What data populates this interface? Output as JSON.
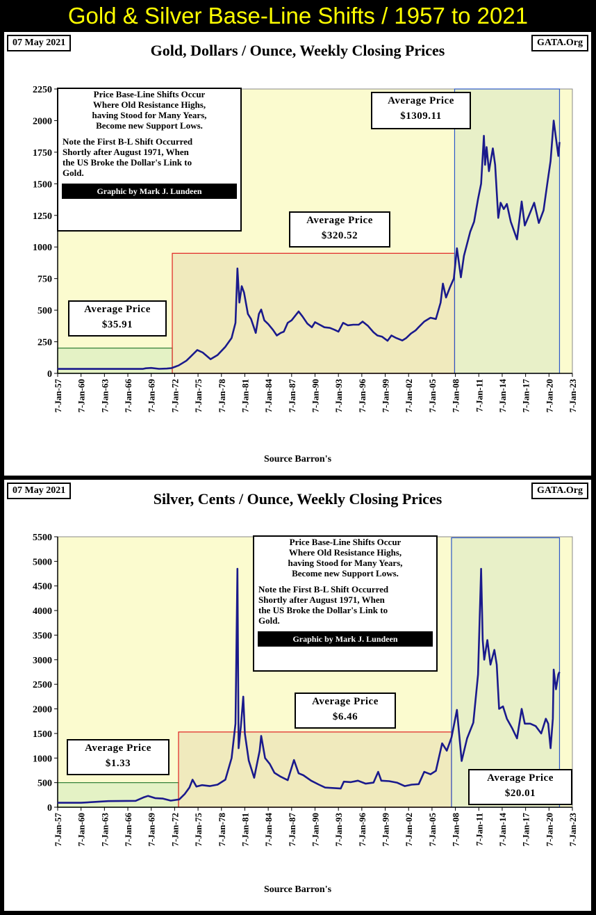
{
  "banner": {
    "title": "Gold & Silver Base-Line Shifts / 1957 to 2021"
  },
  "x_tick_labels": [
    "7-Jan-57",
    "7-Jan-60",
    "7-Jan-63",
    "7-Jan-66",
    "7-Jan-69",
    "7-Jan-72",
    "7-Jan-75",
    "7-Jan-78",
    "7-Jan-81",
    "7-Jan-84",
    "7-Jan-87",
    "7-Jan-90",
    "7-Jan-93",
    "7-Jan-96",
    "7-Jan-99",
    "7-Jan-02",
    "7-Jan-05",
    "7-Jan-08",
    "7-Jan-11",
    "7-Jan-14",
    "7-Jan-17",
    "7-Jan-20",
    "7-Jan-23"
  ],
  "gold": {
    "date_label": "07 May 2021",
    "gata_label": "GATA.Org",
    "title": "Gold, Dollars / Ounce, Weekly Closing Prices",
    "source": "Source Barron's",
    "note": {
      "para1": "Price Base-Line Shifts Occur\nWhere Old Resistance Highs,\nhaving Stood for Many Years,\nBecome new Support Lows.",
      "para2": "Note the First B-L Shift Occurred\nShortly after August 1971, When\nthe US Broke the Dollar's Link to\nGold.",
      "credit": "Graphic by Mark J. Lundeen"
    },
    "avg1": {
      "label": "Average Price",
      "value": "$35.91"
    },
    "avg2": {
      "label": "Average Price",
      "value": "$320.52"
    },
    "avg3": {
      "label": "Average Price",
      "value": "$1309.11"
    }
  },
  "silver": {
    "date_label": "07 May 2021",
    "gata_label": "GATA.Org",
    "title": "Silver, Cents / Ounce, Weekly Closing Prices",
    "source": "Source Barron's",
    "note": {
      "para1": "Price Base-Line Shifts Occur\nWhere Old Resistance Highs,\nhaving Stood for Many Years,\nBecome new Support Lows.",
      "para2": "Note the First B-L Shift Occurred\nShortly after August 1971, When\nthe US Broke the Dollar's Link to\nGold.",
      "credit": "Graphic by Mark J. Lundeen"
    },
    "avg1": {
      "label": "Average Price",
      "value": "$1.33"
    },
    "avg2": {
      "label": "Average Price",
      "value": "$6.46"
    },
    "avg3": {
      "label": "Average Price",
      "value": "$20.01"
    }
  },
  "colors": {
    "banner_text": "#ffff00",
    "plot_bg": "#fbfbcf",
    "line": "#1a1a8c",
    "era1_border": "#2e7d32",
    "era1_fill": "#d7ecc0",
    "era2_border": "#e02020",
    "era2_fill": "#e9e0b4",
    "era3_border": "#2a56c8",
    "era3_fill": "#dde9c4"
  },
  "chart_data": [
    {
      "type": "line",
      "title": "Gold, Dollars / Ounce, Weekly Closing Prices",
      "xlabel": "Source Barron's",
      "ylabel": "",
      "xlim": [
        1957.0,
        2023.0
      ],
      "ylim": [
        0,
        2250
      ],
      "yticks": [
        0,
        250,
        500,
        750,
        1000,
        1250,
        1500,
        1750,
        2000,
        2250
      ],
      "grid": false,
      "eras": [
        {
          "x": [
            1957.0,
            1971.7
          ],
          "y": [
            0,
            200
          ]
        },
        {
          "x": [
            1971.7,
            2007.9
          ],
          "y": [
            0,
            950
          ]
        },
        {
          "x": [
            2007.9,
            2021.35
          ],
          "y": [
            0,
            2250
          ]
        }
      ],
      "series": [
        {
          "values": [
            [
              1957.0,
              35
            ],
            [
              1967.9,
              35
            ],
            [
              1968.3,
              40
            ],
            [
              1969.0,
              43
            ],
            [
              1970.0,
              36
            ],
            [
              1971.0,
              38
            ],
            [
              1971.6,
              42
            ],
            [
              1972.5,
              62
            ],
            [
              1973.5,
              100
            ],
            [
              1974.0,
              130
            ],
            [
              1974.9,
              185
            ],
            [
              1975.6,
              165
            ],
            [
              1976.6,
              112
            ],
            [
              1977.5,
              145
            ],
            [
              1978.5,
              210
            ],
            [
              1979.3,
              280
            ],
            [
              1979.8,
              400
            ],
            [
              1980.05,
              830
            ],
            [
              1980.3,
              560
            ],
            [
              1980.6,
              690
            ],
            [
              1980.9,
              640
            ],
            [
              1981.4,
              470
            ],
            [
              1981.8,
              430
            ],
            [
              1982.4,
              320
            ],
            [
              1982.8,
              470
            ],
            [
              1983.1,
              505
            ],
            [
              1983.5,
              420
            ],
            [
              1984.0,
              390
            ],
            [
              1984.6,
              345
            ],
            [
              1985.1,
              300
            ],
            [
              1985.6,
              320
            ],
            [
              1986.0,
              330
            ],
            [
              1986.5,
              400
            ],
            [
              1987.0,
              420
            ],
            [
              1987.9,
              490
            ],
            [
              1988.4,
              450
            ],
            [
              1989.0,
              395
            ],
            [
              1989.6,
              365
            ],
            [
              1990.0,
              405
            ],
            [
              1990.6,
              385
            ],
            [
              1991.2,
              365
            ],
            [
              1991.9,
              360
            ],
            [
              1992.5,
              345
            ],
            [
              1993.0,
              330
            ],
            [
              1993.6,
              400
            ],
            [
              1994.2,
              380
            ],
            [
              1994.9,
              385
            ],
            [
              1995.6,
              385
            ],
            [
              1996.1,
              410
            ],
            [
              1996.8,
              375
            ],
            [
              1997.5,
              325
            ],
            [
              1998.0,
              300
            ],
            [
              1998.6,
              290
            ],
            [
              1999.3,
              258
            ],
            [
              1999.8,
              300
            ],
            [
              2000.4,
              280
            ],
            [
              2001.2,
              260
            ],
            [
              2001.7,
              280
            ],
            [
              2002.3,
              315
            ],
            [
              2002.9,
              340
            ],
            [
              2003.2,
              360
            ],
            [
              2004.0,
              410
            ],
            [
              2004.8,
              440
            ],
            [
              2005.5,
              430
            ],
            [
              2006.1,
              560
            ],
            [
              2006.4,
              710
            ],
            [
              2006.8,
              600
            ],
            [
              2007.3,
              680
            ],
            [
              2007.8,
              750
            ],
            [
              2008.2,
              990
            ],
            [
              2008.7,
              760
            ],
            [
              2009.1,
              930
            ],
            [
              2009.9,
              1120
            ],
            [
              2010.4,
              1200
            ],
            [
              2010.9,
              1380
            ],
            [
              2011.3,
              1500
            ],
            [
              2011.65,
              1880
            ],
            [
              2011.8,
              1650
            ],
            [
              2012.0,
              1790
            ],
            [
              2012.3,
              1600
            ],
            [
              2012.8,
              1780
            ],
            [
              2013.1,
              1650
            ],
            [
              2013.5,
              1230
            ],
            [
              2013.8,
              1350
            ],
            [
              2014.2,
              1300
            ],
            [
              2014.6,
              1340
            ],
            [
              2015.1,
              1200
            ],
            [
              2015.9,
              1060
            ],
            [
              2016.5,
              1360
            ],
            [
              2016.9,
              1170
            ],
            [
              2017.5,
              1260
            ],
            [
              2018.1,
              1350
            ],
            [
              2018.7,
              1190
            ],
            [
              2019.3,
              1290
            ],
            [
              2019.8,
              1510
            ],
            [
              2020.2,
              1680
            ],
            [
              2020.6,
              2000
            ],
            [
              2020.9,
              1860
            ],
            [
              2021.2,
              1720
            ],
            [
              2021.35,
              1830
            ]
          ]
        }
      ]
    },
    {
      "type": "line",
      "title": "Silver, Cents / Ounce, Weekly Closing Prices",
      "xlabel": "Source Barron's",
      "ylabel": "",
      "xlim": [
        1957.0,
        2023.0
      ],
      "ylim": [
        0,
        5500
      ],
      "yticks": [
        0,
        500,
        1000,
        1500,
        2000,
        2500,
        3000,
        3500,
        4000,
        4500,
        5000,
        5500
      ],
      "grid": false,
      "eras": [
        {
          "x": [
            1957.0,
            1972.5
          ],
          "y": [
            0,
            500
          ]
        },
        {
          "x": [
            1972.5,
            2007.5
          ],
          "y": [
            0,
            1530
          ]
        },
        {
          "x": [
            2007.5,
            2021.35
          ],
          "y": [
            0,
            5480
          ]
        }
      ],
      "series": [
        {
          "values": [
            [
              1957.0,
              90
            ],
            [
              1960.0,
              91
            ],
            [
              1963.5,
              125
            ],
            [
              1967.0,
              130
            ],
            [
              1968.0,
              200
            ],
            [
              1968.6,
              230
            ],
            [
              1969.5,
              185
            ],
            [
              1970.5,
              175
            ],
            [
              1971.5,
              135
            ],
            [
              1972.6,
              160
            ],
            [
              1973.3,
              270
            ],
            [
              1973.9,
              400
            ],
            [
              1974.3,
              560
            ],
            [
              1974.8,
              420
            ],
            [
              1975.5,
              450
            ],
            [
              1976.5,
              430
            ],
            [
              1977.5,
              460
            ],
            [
              1978.5,
              560
            ],
            [
              1979.3,
              1000
            ],
            [
              1979.8,
              1700
            ],
            [
              1980.05,
              4850
            ],
            [
              1980.2,
              1200
            ],
            [
              1980.5,
              1650
            ],
            [
              1980.8,
              2250
            ],
            [
              1981.0,
              1500
            ],
            [
              1981.5,
              950
            ],
            [
              1982.2,
              600
            ],
            [
              1982.9,
              1150
            ],
            [
              1983.1,
              1450
            ],
            [
              1983.6,
              1000
            ],
            [
              1984.2,
              880
            ],
            [
              1984.8,
              700
            ],
            [
              1985.6,
              620
            ],
            [
              1986.5,
              550
            ],
            [
              1987.3,
              960
            ],
            [
              1987.9,
              690
            ],
            [
              1988.5,
              650
            ],
            [
              1989.5,
              540
            ],
            [
              1990.5,
              460
            ],
            [
              1991.3,
              400
            ],
            [
              1992.4,
              390
            ],
            [
              1993.3,
              380
            ],
            [
              1993.7,
              520
            ],
            [
              1994.6,
              510
            ],
            [
              1995.5,
              540
            ],
            [
              1996.5,
              480
            ],
            [
              1997.5,
              500
            ],
            [
              1998.1,
              720
            ],
            [
              1998.5,
              540
            ],
            [
              1999.5,
              530
            ],
            [
              2000.5,
              500
            ],
            [
              2001.5,
              430
            ],
            [
              2002.4,
              460
            ],
            [
              2003.3,
              470
            ],
            [
              2004.0,
              720
            ],
            [
              2004.8,
              670
            ],
            [
              2005.5,
              740
            ],
            [
              2006.3,
              1300
            ],
            [
              2006.9,
              1150
            ],
            [
              2007.5,
              1420
            ],
            [
              2008.2,
              1980
            ],
            [
              2008.8,
              940
            ],
            [
              2009.5,
              1400
            ],
            [
              2010.3,
              1720
            ],
            [
              2010.9,
              2700
            ],
            [
              2011.3,
              4850
            ],
            [
              2011.5,
              3400
            ],
            [
              2011.7,
              3000
            ],
            [
              2012.1,
              3400
            ],
            [
              2012.5,
              2900
            ],
            [
              2013.0,
              3200
            ],
            [
              2013.3,
              2900
            ],
            [
              2013.6,
              2000
            ],
            [
              2014.1,
              2050
            ],
            [
              2014.6,
              1800
            ],
            [
              2015.3,
              1600
            ],
            [
              2015.9,
              1400
            ],
            [
              2016.5,
              2000
            ],
            [
              2016.9,
              1700
            ],
            [
              2017.6,
              1700
            ],
            [
              2018.3,
              1650
            ],
            [
              2019.0,
              1500
            ],
            [
              2019.6,
              1800
            ],
            [
              2019.9,
              1700
            ],
            [
              2020.2,
              1200
            ],
            [
              2020.5,
              1800
            ],
            [
              2020.6,
              2800
            ],
            [
              2020.9,
              2400
            ],
            [
              2021.2,
              2700
            ],
            [
              2021.35,
              2750
            ]
          ]
        }
      ]
    }
  ]
}
